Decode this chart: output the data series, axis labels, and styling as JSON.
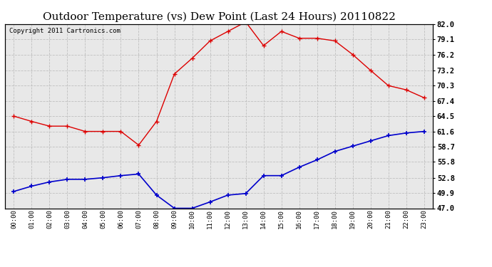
{
  "title": "Outdoor Temperature (vs) Dew Point (Last 24 Hours) 20110822",
  "copyright": "Copyright 2011 Cartronics.com",
  "x_labels": [
    "00:00",
    "01:00",
    "02:00",
    "03:00",
    "04:00",
    "05:00",
    "06:00",
    "07:00",
    "08:00",
    "09:00",
    "10:00",
    "11:00",
    "12:00",
    "13:00",
    "14:00",
    "15:00",
    "16:00",
    "17:00",
    "18:00",
    "19:00",
    "20:00",
    "21:00",
    "22:00",
    "23:00"
  ],
  "temp_data": [
    64.5,
    63.5,
    62.6,
    62.6,
    61.6,
    61.6,
    61.6,
    59.0,
    63.5,
    72.5,
    75.5,
    78.8,
    80.6,
    82.4,
    77.9,
    80.6,
    79.3,
    79.3,
    78.8,
    76.2,
    73.2,
    70.3,
    69.5,
    68.0
  ],
  "dew_data": [
    50.2,
    51.2,
    52.0,
    52.5,
    52.5,
    52.8,
    53.2,
    53.5,
    49.5,
    47.0,
    47.0,
    48.2,
    49.5,
    49.8,
    53.2,
    53.2,
    54.8,
    56.2,
    57.8,
    58.8,
    59.8,
    60.8,
    61.3,
    61.6
  ],
  "temp_color": "#dd0000",
  "dew_color": "#0000cc",
  "ylim": [
    47.0,
    82.0
  ],
  "yticks": [
    47.0,
    49.9,
    52.8,
    55.8,
    58.7,
    61.6,
    64.5,
    67.4,
    70.3,
    73.2,
    76.2,
    79.1,
    82.0
  ],
  "plot_bg_color": "#e8e8e8",
  "fig_bg_color": "#ffffff",
  "grid_color": "#bbbbbb",
  "title_fontsize": 11,
  "copyright_fontsize": 6.5
}
